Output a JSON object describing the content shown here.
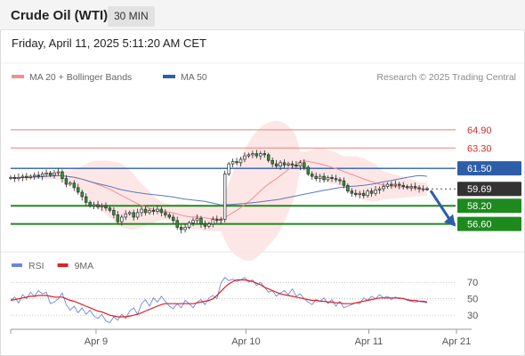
{
  "header": {
    "title": "Crude Oil (WTI)",
    "interval": "30 MIN",
    "timestamp": "Friday, April 11, 2025 5:11:20 AM CET"
  },
  "colors": {
    "resistance_line": "#e8817a",
    "pivot_line": "#2e5ea8",
    "support_line": "#1e8a1e",
    "support_label_bg": "#1e8a1e",
    "pivot_label_bg": "#2e5ea8",
    "price_label_bg": "#333333",
    "resistance_text": "#d0302a",
    "bollinger_fill": "#fde3e3",
    "ma20": "#f09090",
    "ma50": "#5b78b8",
    "candle_up": "#ffffff",
    "candle_down": "#2d9b2d",
    "rsi": "#6a86e0",
    "rsi_ma": "#e02020",
    "arrow": "#2e5ea8"
  },
  "chart_data": [
    {
      "type": "candlestick",
      "legend": [
        {
          "name": "MA 20 + Bollinger Bands",
          "color": "#f09090"
        },
        {
          "name": "MA 50",
          "color": "#2e5ea8"
        }
      ],
      "legend_position": "top-left",
      "credit": "Research © 2025 Trading Central",
      "x_ticks": [
        "Apr 9",
        "Apr 10",
        "Apr 11",
        "Apr 21"
      ],
      "ylim": [
        55.0,
        68.5
      ],
      "levels": [
        {
          "value": 64.9,
          "label": "64.90",
          "kind": "resistance"
        },
        {
          "value": 63.3,
          "label": "63.30",
          "kind": "resistance"
        },
        {
          "value": 61.5,
          "label": "61.50",
          "kind": "pivot"
        },
        {
          "value": 59.69,
          "label": "59.69",
          "kind": "last"
        },
        {
          "value": 58.2,
          "label": "58.20",
          "kind": "support"
        },
        {
          "value": 56.6,
          "label": "56.60",
          "kind": "support"
        }
      ],
      "last_price": 59.69,
      "forecast_arrow": {
        "from": 59.69,
        "to": 56.6,
        "direction": "down"
      },
      "close": [
        60.7,
        60.6,
        60.7,
        60.8,
        60.7,
        60.8,
        60.9,
        60.8,
        61.0,
        61.1,
        60.9,
        61.1,
        61.2,
        60.6,
        60.1,
        60.2,
        59.8,
        59.4,
        59.0,
        58.5,
        58.2,
        58.3,
        58.1,
        58.2,
        58.0,
        57.8,
        57.4,
        56.8,
        57.2,
        57.5,
        57.6,
        57.2,
        57.6,
        57.9,
        57.6,
        57.8,
        57.7,
        57.9,
        57.6,
        57.4,
        57.2,
        56.9,
        56.3,
        56.1,
        56.3,
        56.7,
        56.9,
        57.1,
        56.6,
        56.4,
        56.6,
        57.0,
        56.9,
        57.0,
        61.0,
        61.9,
        62.1,
        62.0,
        62.3,
        62.6,
        62.7,
        62.8,
        62.6,
        62.8,
        62.7,
        62.2,
        61.9,
        61.7,
        62.0,
        61.8,
        61.9,
        61.8,
        61.7,
        62.0,
        61.6,
        61.0,
        60.8,
        60.6,
        60.8,
        60.5,
        60.7,
        60.6,
        60.5,
        60.4,
        60.0,
        59.5,
        59.3,
        59.2,
        59.3,
        59.1,
        59.5,
        59.3,
        59.6,
        59.7,
        59.9,
        60.1,
        60.0,
        60.1,
        60.0,
        59.9,
        59.8,
        59.9,
        59.8,
        59.7,
        59.7,
        59.69
      ]
    },
    {
      "type": "line",
      "legend": [
        {
          "name": "RSI",
          "color": "#6a86e0"
        },
        {
          "name": "9MA",
          "color": "#e02020"
        }
      ],
      "y_ticks": [
        70,
        50,
        30
      ],
      "ylim": [
        15,
        80
      ],
      "series": [
        {
          "name": "RSI",
          "values": [
            48,
            52,
            45,
            55,
            50,
            58,
            53,
            60,
            56,
            58,
            44,
            46,
            50,
            57,
            43,
            36,
            41,
            33,
            39,
            31,
            36,
            29,
            26,
            31,
            23,
            21,
            28,
            24,
            31,
            26,
            35,
            39,
            31,
            44,
            49,
            41,
            51,
            46,
            53,
            47,
            41,
            38,
            44,
            39,
            48,
            44,
            39,
            46,
            49,
            43,
            51,
            54,
            50,
            69,
            76,
            72,
            74,
            71,
            73,
            76,
            70,
            73,
            66,
            70,
            64,
            58,
            60,
            53,
            57,
            60,
            55,
            62,
            53,
            56,
            50,
            46,
            43,
            49,
            47,
            51,
            44,
            49,
            41,
            47,
            39,
            41,
            43,
            45,
            44,
            51,
            48,
            53,
            50,
            55,
            51,
            53,
            49,
            52,
            50,
            51,
            48,
            47,
            46,
            47,
            46,
            45
          ]
        },
        {
          "name": "9MA",
          "values": [
            48,
            49,
            50,
            51,
            52,
            53,
            53,
            54,
            54,
            54,
            53,
            52,
            52,
            52,
            50,
            48,
            47,
            45,
            43,
            41,
            39,
            37,
            35,
            34,
            32,
            30,
            29,
            28,
            28,
            28,
            29,
            30,
            31,
            33,
            35,
            37,
            39,
            41,
            43,
            44,
            44,
            44,
            44,
            44,
            44,
            44,
            44,
            45,
            46,
            47,
            48,
            50,
            54,
            59,
            64,
            68,
            71,
            73,
            73,
            73,
            72,
            71,
            69,
            67,
            64,
            62,
            60,
            58,
            56,
            55,
            54,
            53,
            52,
            51,
            50,
            49,
            48,
            48,
            47,
            47,
            46,
            46,
            45,
            45,
            44,
            44,
            44,
            45,
            46,
            47,
            48,
            49,
            50,
            51,
            51,
            51,
            51,
            51,
            51,
            50,
            49,
            48,
            48,
            47,
            47,
            46
          ]
        }
      ]
    }
  ]
}
